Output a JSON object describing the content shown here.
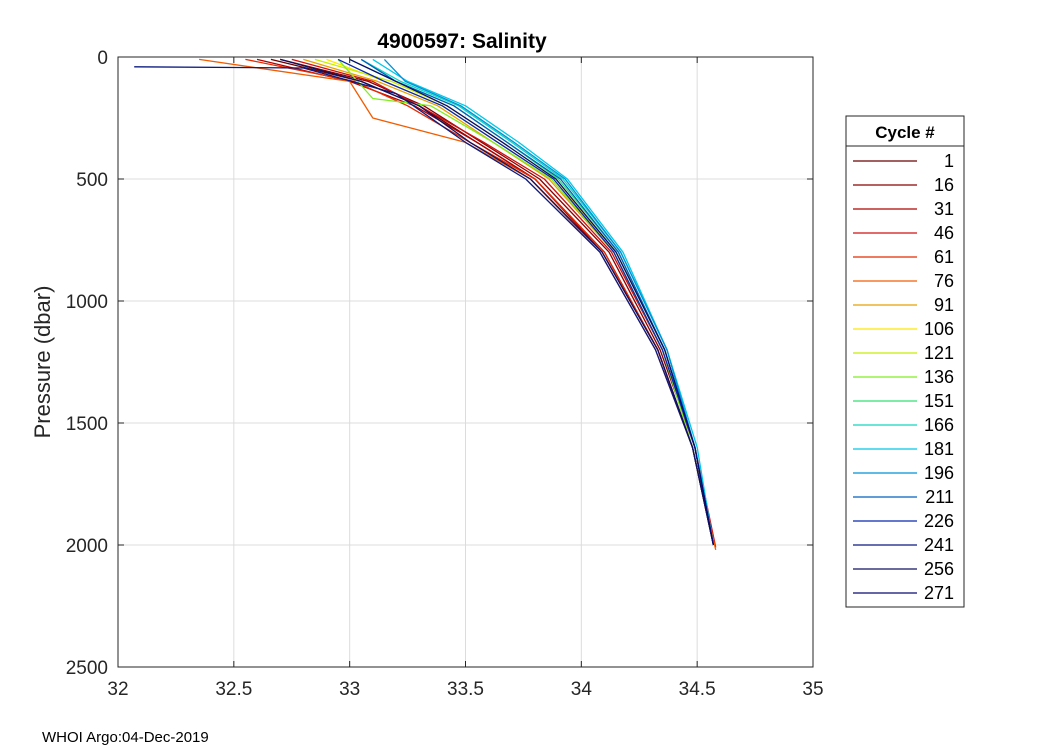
{
  "chart_data": {
    "type": "line",
    "title": "4900597:  Salinity",
    "xlabel": "",
    "ylabel": "Pressure (dbar)",
    "xlim": [
      32,
      35
    ],
    "ylim": [
      0,
      2500
    ],
    "y_reversed": true,
    "grid": true,
    "x_ticks": [
      32,
      32.5,
      33,
      33.5,
      34,
      34.5,
      35
    ],
    "x_tick_labels": [
      "32",
      "32.5",
      "33",
      "33.5",
      "34",
      "34.5",
      "35"
    ],
    "y_ticks": [
      0,
      500,
      1000,
      1500,
      2000,
      2500
    ],
    "y_tick_labels": [
      "0",
      "500",
      "1000",
      "1500",
      "2000",
      "2500"
    ],
    "legend": {
      "title": "Cycle #",
      "placement": "outside-right",
      "entries": [
        {
          "label": "1",
          "color": "#6b0000"
        },
        {
          "label": "16",
          "color": "#8b0000"
        },
        {
          "label": "31",
          "color": "#b00000"
        },
        {
          "label": "46",
          "color": "#d01010"
        },
        {
          "label": "61",
          "color": "#e62a00"
        },
        {
          "label": "76",
          "color": "#f25c00"
        },
        {
          "label": "91",
          "color": "#e8a000"
        },
        {
          "label": "106",
          "color": "#ffe800"
        },
        {
          "label": "121",
          "color": "#c8ee00"
        },
        {
          "label": "136",
          "color": "#80ee20"
        },
        {
          "label": "151",
          "color": "#30e070"
        },
        {
          "label": "166",
          "color": "#10d8c0"
        },
        {
          "label": "181",
          "color": "#00c8e8"
        },
        {
          "label": "196",
          "color": "#0090d8"
        },
        {
          "label": "211",
          "color": "#0060c0"
        },
        {
          "label": "226",
          "color": "#0828b0"
        },
        {
          "label": "241",
          "color": "#0a1a80"
        },
        {
          "label": "256",
          "color": "#101060"
        },
        {
          "label": "271",
          "color": "#0a0a70"
        }
      ]
    },
    "series": [
      {
        "name": "1",
        "color": "#6b0000",
        "salinity": [
          32.66,
          33.05,
          33.3,
          33.55,
          33.8,
          34.1,
          34.33,
          34.48,
          34.57
        ],
        "pressure": [
          10,
          100,
          200,
          350,
          500,
          800,
          1200,
          1600,
          2000
        ]
      },
      {
        "name": "16",
        "color": "#8b0000",
        "salinity": [
          32.7,
          33.08,
          33.32,
          33.57,
          33.82,
          34.12,
          34.34,
          34.49,
          34.57
        ],
        "pressure": [
          10,
          100,
          200,
          350,
          500,
          800,
          1200,
          1600,
          2000
        ]
      },
      {
        "name": "31",
        "color": "#b00000",
        "salinity": [
          32.6,
          33.0,
          33.28,
          33.55,
          33.8,
          34.09,
          34.33,
          34.48,
          34.57
        ],
        "pressure": [
          10,
          100,
          200,
          350,
          500,
          800,
          1200,
          1600,
          2000
        ]
      },
      {
        "name": "46",
        "color": "#d01010",
        "salinity": [
          32.75,
          33.1,
          33.3,
          33.58,
          33.84,
          34.13,
          34.35,
          34.49,
          34.58
        ],
        "pressure": [
          10,
          100,
          200,
          350,
          500,
          800,
          1200,
          1600,
          2010
        ]
      },
      {
        "name": "61",
        "color": "#e62a00",
        "salinity": [
          32.55,
          33.02,
          33.25,
          33.52,
          33.8,
          34.1,
          34.33,
          34.48,
          34.57
        ],
        "pressure": [
          10,
          100,
          200,
          350,
          500,
          800,
          1200,
          1600,
          2000
        ]
      },
      {
        "name": "76",
        "color": "#f25c00",
        "salinity": [
          32.35,
          33.0,
          33.1,
          33.5,
          33.78,
          34.08,
          34.32,
          34.48,
          34.58
        ],
        "pressure": [
          10,
          100,
          250,
          350,
          500,
          800,
          1200,
          1600,
          2020
        ]
      },
      {
        "name": "91",
        "color": "#e8a000",
        "salinity": [
          32.8,
          33.12,
          33.38,
          33.62,
          33.86,
          34.14,
          34.35,
          34.49,
          34.57
        ],
        "pressure": [
          10,
          100,
          200,
          350,
          500,
          800,
          1200,
          1600,
          2000
        ]
      },
      {
        "name": "106",
        "color": "#ffe800",
        "salinity": [
          32.9,
          33.15,
          33.4,
          33.64,
          33.88,
          34.15,
          34.36,
          34.49,
          34.57
        ],
        "pressure": [
          10,
          100,
          200,
          350,
          500,
          800,
          1200,
          1600,
          2000
        ]
      },
      {
        "name": "121",
        "color": "#c8ee00",
        "salinity": [
          32.85,
          33.18,
          33.42,
          33.66,
          33.89,
          34.15,
          34.36,
          34.49,
          34.57
        ],
        "pressure": [
          10,
          100,
          200,
          350,
          500,
          800,
          1200,
          1600,
          2000
        ]
      },
      {
        "name": "136",
        "color": "#80ee20",
        "salinity": [
          32.95,
          33.1,
          33.35,
          33.62,
          33.87,
          34.14,
          34.35,
          34.48,
          34.57
        ],
        "pressure": [
          10,
          170,
          200,
          350,
          500,
          800,
          1200,
          1600,
          2000
        ]
      },
      {
        "name": "151",
        "color": "#30e070",
        "salinity": [
          33.0,
          33.2,
          33.45,
          33.68,
          33.9,
          34.16,
          34.36,
          34.49,
          34.57
        ],
        "pressure": [
          10,
          100,
          200,
          350,
          500,
          800,
          1200,
          1600,
          2000
        ]
      },
      {
        "name": "166",
        "color": "#10d8c0",
        "salinity": [
          33.05,
          33.22,
          33.47,
          33.7,
          33.92,
          34.17,
          34.37,
          34.49,
          34.57
        ],
        "pressure": [
          10,
          100,
          200,
          350,
          500,
          800,
          1200,
          1600,
          2000
        ]
      },
      {
        "name": "181",
        "color": "#00c8e8",
        "salinity": [
          33.1,
          33.25,
          33.5,
          33.73,
          33.94,
          34.18,
          34.37,
          34.5,
          34.57
        ],
        "pressure": [
          10,
          100,
          200,
          350,
          500,
          800,
          1200,
          1600,
          2000
        ]
      },
      {
        "name": "196",
        "color": "#0090d8",
        "salinity": [
          33.15,
          33.24,
          33.48,
          33.71,
          33.93,
          34.17,
          34.37,
          34.49,
          34.57
        ],
        "pressure": [
          10,
          100,
          200,
          350,
          500,
          800,
          1200,
          1600,
          2000
        ]
      },
      {
        "name": "211",
        "color": "#0060c0",
        "salinity": [
          33.05,
          33.2,
          33.45,
          33.68,
          33.91,
          34.16,
          34.36,
          34.49,
          34.57
        ],
        "pressure": [
          10,
          100,
          200,
          350,
          500,
          800,
          1200,
          1600,
          2000
        ]
      },
      {
        "name": "226",
        "color": "#0828b0",
        "salinity": [
          32.95,
          33.15,
          33.4,
          33.64,
          33.88,
          34.14,
          34.35,
          34.49,
          34.57
        ],
        "pressure": [
          10,
          100,
          200,
          350,
          500,
          800,
          1200,
          1600,
          2000
        ]
      },
      {
        "name": "241",
        "color": "#0a1a80",
        "salinity": [
          32.07,
          32.8,
          33.2,
          33.5,
          33.76,
          34.08,
          34.32,
          34.48,
          34.57
        ],
        "pressure": [
          40,
          45,
          150,
          350,
          500,
          800,
          1200,
          1600,
          2000
        ]
      },
      {
        "name": "256",
        "color": "#101060",
        "salinity": [
          32.7,
          33.05,
          33.3,
          33.52,
          33.78,
          34.09,
          34.33,
          34.48,
          34.57
        ],
        "pressure": [
          10,
          100,
          200,
          350,
          500,
          800,
          1200,
          1600,
          2000
        ]
      },
      {
        "name": "271",
        "color": "#0a0a70",
        "salinity": [
          33.0,
          33.2,
          33.42,
          33.66,
          33.89,
          34.15,
          34.36,
          34.49,
          34.57
        ],
        "pressure": [
          10,
          100,
          200,
          350,
          500,
          800,
          1200,
          1600,
          2000
        ]
      }
    ]
  },
  "footer": {
    "source_label": "WHOI Argo:04-Dec-2019"
  }
}
